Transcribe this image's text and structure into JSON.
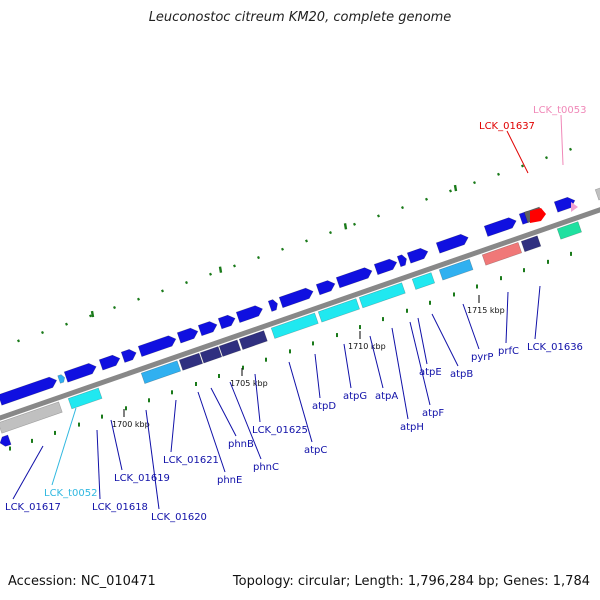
{
  "title": "Leuconostoc citreum KM20, complete genome",
  "accession": "Accession: NC_010471",
  "topology": "Topology: circular; Length: 1,796,284 bp; Genes: 1,784",
  "ruler_ticks": [
    {
      "label": "1700 kbp"
    },
    {
      "label": "1705 kbp"
    },
    {
      "label": "1710 kbp"
    },
    {
      "label": "1715 kbp"
    }
  ],
  "gene_labels": [
    {
      "name": "LCK_01617",
      "color": "#1010a8"
    },
    {
      "name": "LCK_t0052",
      "color": "#30b8e0"
    },
    {
      "name": "LCK_01618",
      "color": "#1010a8"
    },
    {
      "name": "LCK_01619",
      "color": "#1010a8"
    },
    {
      "name": "LCK_01620",
      "color": "#1010a8"
    },
    {
      "name": "LCK_01621",
      "color": "#1010a8"
    },
    {
      "name": "phnE",
      "color": "#1010a8"
    },
    {
      "name": "phnB",
      "color": "#1010a8"
    },
    {
      "name": "phnC",
      "color": "#1010a8"
    },
    {
      "name": "LCK_01625",
      "color": "#1010a8"
    },
    {
      "name": "atpC",
      "color": "#1010a8"
    },
    {
      "name": "atpD",
      "color": "#1010a8"
    },
    {
      "name": "atpG",
      "color": "#1010a8"
    },
    {
      "name": "atpA",
      "color": "#1010a8"
    },
    {
      "name": "atpH",
      "color": "#1010a8"
    },
    {
      "name": "atpF",
      "color": "#1010a8"
    },
    {
      "name": "atpE",
      "color": "#1010a8"
    },
    {
      "name": "atpB",
      "color": "#1010a8"
    },
    {
      "name": "pyrP",
      "color": "#1010a8"
    },
    {
      "name": "prfC",
      "color": "#1010a8"
    },
    {
      "name": "LCK_01636",
      "color": "#1010a8"
    },
    {
      "name": "LCK_01637",
      "color": "#e00000"
    },
    {
      "name": "LCK_t0053",
      "color": "#f088b8"
    }
  ],
  "colors": {
    "cds_blue": "#1010e0",
    "cyan": "#20e8f0",
    "light_blue": "#30b0f0",
    "navy": "#303080",
    "gray": "#c0c0c0",
    "dark_gray": "#606060",
    "salmon": "#f07878",
    "teal": "#20e0a0",
    "red": "#ff0000",
    "pink": "#f0a0d0",
    "backbone": "#888888",
    "tick_green": "#1a7a1a",
    "label_blue": "#1010a8"
  }
}
